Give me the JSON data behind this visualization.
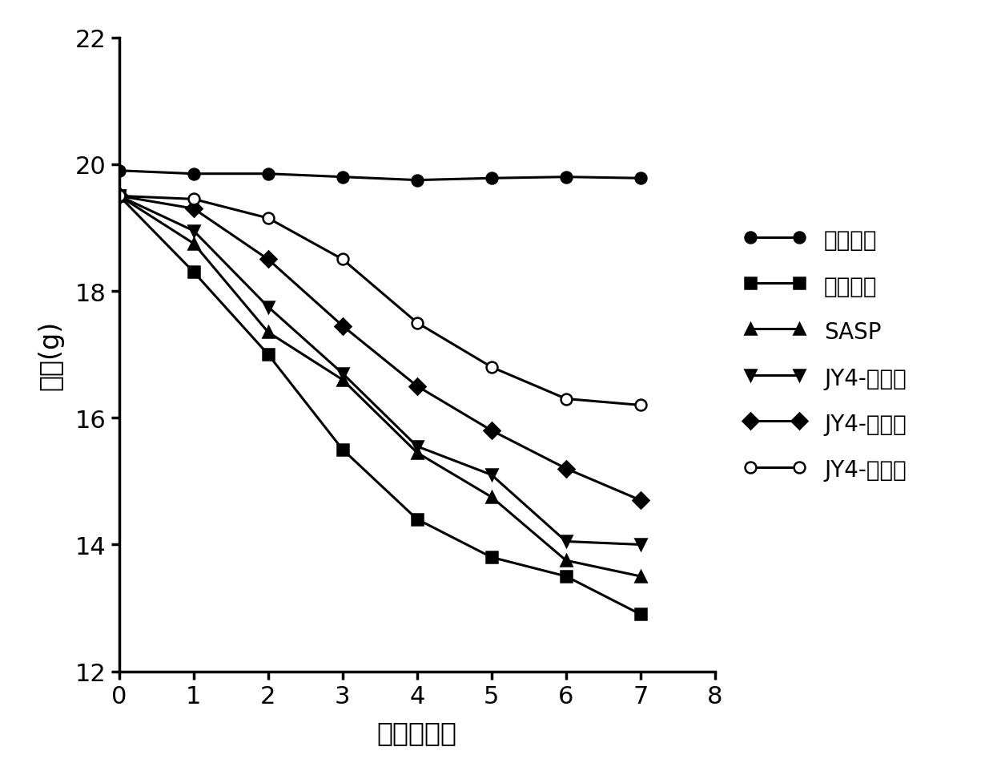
{
  "x": [
    0,
    1,
    2,
    3,
    4,
    5,
    6,
    7
  ],
  "series_order": [
    "正常对照",
    "模型对照",
    "SASP",
    "JY4-低剂量",
    "JY4-中剂量",
    "JY4-高剂量"
  ],
  "series": {
    "正常对照": {
      "y": [
        19.9,
        19.85,
        19.85,
        19.8,
        19.75,
        19.78,
        19.8,
        19.78
      ],
      "marker": "o",
      "filled": true
    },
    "模型对照": {
      "y": [
        19.5,
        18.3,
        17.0,
        15.5,
        14.4,
        13.8,
        13.5,
        12.9
      ],
      "marker": "s",
      "filled": true
    },
    "SASP": {
      "y": [
        19.5,
        18.75,
        17.35,
        16.6,
        15.45,
        14.75,
        13.75,
        13.5
      ],
      "marker": "^",
      "filled": true
    },
    "JY4-低剂量": {
      "y": [
        19.5,
        18.95,
        17.75,
        16.7,
        15.55,
        15.1,
        14.05,
        14.0
      ],
      "marker": "v",
      "filled": true
    },
    "JY4-中剂量": {
      "y": [
        19.5,
        19.3,
        18.5,
        17.45,
        16.5,
        15.8,
        15.2,
        14.7
      ],
      "marker": "D",
      "filled": true
    },
    "JY4-高剂量": {
      "y": [
        19.5,
        19.45,
        19.15,
        18.5,
        17.5,
        16.8,
        16.3,
        16.2
      ],
      "marker": "o",
      "filled": false
    }
  },
  "xlabel": "时间（天）",
  "ylabel": "体重(g)",
  "xlim": [
    0,
    8
  ],
  "ylim": [
    12,
    22
  ],
  "xticks": [
    0,
    1,
    2,
    3,
    4,
    5,
    6,
    7,
    8
  ],
  "yticks": [
    12,
    14,
    16,
    18,
    20,
    22
  ],
  "font_size": 24,
  "tick_font_size": 22,
  "legend_font_size": 20,
  "line_color": "black",
  "linewidth": 2.2,
  "markersize": 10,
  "markeredgewidth": 1.8,
  "background_color": "#ffffff"
}
